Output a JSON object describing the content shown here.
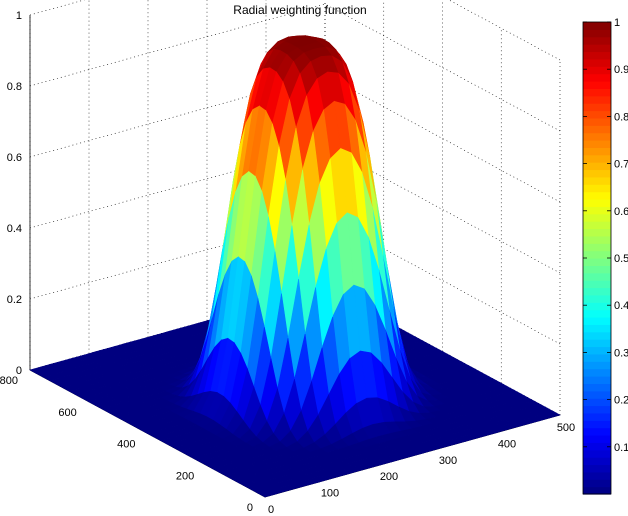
{
  "chart_data": {
    "type": "surface",
    "title": "Radial weighting function",
    "xlabel": "",
    "ylabel": "",
    "zlabel": "",
    "xlim": [
      0,
      500
    ],
    "ylim": [
      0,
      800
    ],
    "zlim": [
      0,
      1
    ],
    "x_ticks": [
      "0",
      "100",
      "200",
      "300",
      "400",
      "500"
    ],
    "y_ticks": [
      "0",
      "200",
      "400",
      "600",
      "800"
    ],
    "z_ticks": [
      "0",
      "0.2",
      "0.4",
      "0.6",
      "0.8",
      "1"
    ],
    "colorbar_ticks": [
      "0.1",
      "0.2",
      "0.3",
      "0.4",
      "0.5",
      "0.6",
      "0.7",
      "0.8",
      "0.9",
      "1"
    ],
    "colorbar_range": [
      0,
      1
    ],
    "colormap": "jet",
    "grid": true,
    "surface": {
      "function": "radial weight, peak 1 at center, falls to 0 toward edges",
      "center": [
        250,
        370
      ],
      "peak": 1
    }
  }
}
